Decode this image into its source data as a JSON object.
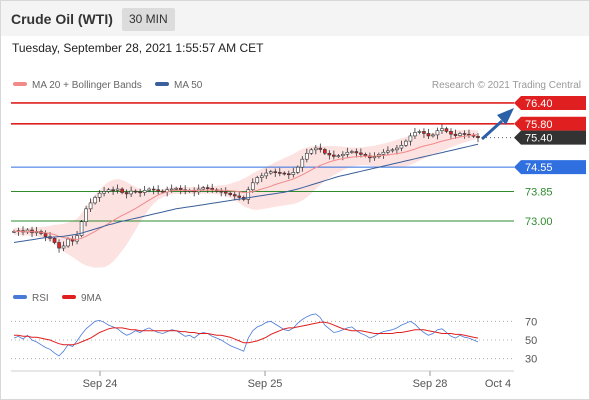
{
  "header": {
    "title": "Crude Oil (WTI)",
    "interval": "30 MIN"
  },
  "timestamp": "Tuesday, September 28, 2021 1:55:57 AM CET",
  "source": "Research © 2021 Trading Central",
  "colors": {
    "resistance": "#e02020",
    "current": "#333333",
    "pivot": "#2f6fe0",
    "support": "#2e8b2e",
    "ma20": "#f28a8a",
    "ma50": "#3a5f9a",
    "bollinger": "#fde2e2",
    "rsi": "#4a7ad8",
    "rsi_ma": "#e02020",
    "arrow": "#2b5fa8"
  },
  "chart_data": [
    {
      "type": "candlestick",
      "legend": [
        {
          "label": "MA 20 + Bollinger Bands"
        },
        {
          "label": "MA 50"
        }
      ],
      "levels": [
        {
          "value": 76.4,
          "label": "76.40",
          "kind": "resistance"
        },
        {
          "value": 75.8,
          "label": "75.80",
          "kind": "resistance"
        },
        {
          "value": 75.4,
          "label": "75.40",
          "kind": "current"
        },
        {
          "value": 74.55,
          "label": "74.55",
          "kind": "pivot"
        },
        {
          "value": 73.85,
          "label": "73.85",
          "kind": "support"
        },
        {
          "value": 73.0,
          "label": "73.00",
          "kind": "support"
        }
      ],
      "ylim": [
        71.3,
        76.6
      ],
      "x_labels": [
        "Sep 24",
        "Sep 25",
        "Sep 28",
        "Oct 4"
      ],
      "closes": [
        72.7,
        72.72,
        72.68,
        72.74,
        72.66,
        72.7,
        72.64,
        72.55,
        72.5,
        72.38,
        72.22,
        72.28,
        72.48,
        72.42,
        72.58,
        72.98,
        73.35,
        73.52,
        73.68,
        73.8,
        73.85,
        73.9,
        73.88,
        73.92,
        73.82,
        73.78,
        73.86,
        73.84,
        73.82,
        73.88,
        73.92,
        73.9,
        73.86,
        73.84,
        73.9,
        73.92,
        73.94,
        73.9,
        73.86,
        73.88,
        73.84,
        73.92,
        73.96,
        73.94,
        73.9,
        73.86,
        73.84,
        73.8,
        73.76,
        73.72,
        73.68,
        73.62,
        73.9,
        74.1,
        74.25,
        74.3,
        74.38,
        74.42,
        74.4,
        74.38,
        74.36,
        74.34,
        74.4,
        74.55,
        74.78,
        74.95,
        75.05,
        75.1,
        75.06,
        74.95,
        74.9,
        74.86,
        74.88,
        74.92,
        74.98,
        75.0,
        74.96,
        74.92,
        74.88,
        74.82,
        74.85,
        74.92,
        74.98,
        75.02,
        75.05,
        75.1,
        75.18,
        75.3,
        75.45,
        75.55,
        75.58,
        75.52,
        75.45,
        75.48,
        75.6,
        75.66,
        75.58,
        75.5,
        75.46,
        75.52,
        75.5,
        75.48,
        75.44,
        75.4
      ],
      "ma20": [
        72.7,
        72.7,
        72.69,
        72.69,
        72.69,
        72.69,
        72.68,
        72.66,
        72.64,
        72.61,
        72.56,
        72.52,
        72.5,
        72.48,
        72.47,
        72.5,
        72.56,
        72.63,
        72.7,
        72.78,
        72.85,
        72.93,
        73.01,
        73.09,
        73.16,
        73.22,
        73.29,
        73.36,
        73.44,
        73.52,
        73.6,
        73.68,
        73.75,
        73.8,
        73.84,
        73.87,
        73.88,
        73.88,
        73.88,
        73.88,
        73.88,
        73.88,
        73.89,
        73.89,
        73.89,
        73.89,
        73.89,
        73.88,
        73.87,
        73.86,
        73.84,
        73.82,
        73.83,
        73.85,
        73.88,
        73.92,
        73.96,
        74.0,
        74.05,
        74.09,
        74.13,
        74.17,
        74.21,
        74.27,
        74.33,
        74.4,
        74.47,
        74.54,
        74.6,
        74.65,
        74.7,
        74.74,
        74.77,
        74.8,
        74.82,
        74.84,
        74.85,
        74.86,
        74.87,
        74.87,
        74.87,
        74.88,
        74.89,
        74.9,
        74.92,
        74.94,
        74.96,
        74.99,
        75.03,
        75.07,
        75.12,
        75.16,
        75.19,
        75.22,
        75.26,
        75.3,
        75.33,
        75.36,
        75.39,
        75.42,
        75.44,
        75.46,
        75.48,
        75.49
      ],
      "ma50": [
        72.38,
        72.4,
        72.42,
        72.44,
        72.46,
        72.48,
        72.5,
        72.52,
        72.53,
        72.54,
        72.55,
        72.56,
        72.58,
        72.6,
        72.62,
        72.65,
        72.69,
        72.73,
        72.77,
        72.81,
        72.85,
        72.89,
        72.92,
        72.96,
        72.99,
        73.02,
        73.05,
        73.08,
        73.11,
        73.14,
        73.17,
        73.2,
        73.23,
        73.26,
        73.29,
        73.32,
        73.35,
        73.37,
        73.39,
        73.41,
        73.43,
        73.45,
        73.47,
        73.49,
        73.51,
        73.53,
        73.55,
        73.57,
        73.59,
        73.61,
        73.63,
        73.65,
        73.67,
        73.69,
        73.71,
        73.73,
        73.75,
        73.77,
        73.79,
        73.81,
        73.83,
        73.86,
        73.89,
        73.92,
        73.96,
        74.0,
        74.04,
        74.08,
        74.12,
        74.16,
        74.2,
        74.24,
        74.28,
        74.31,
        74.34,
        74.37,
        74.4,
        74.43,
        74.46,
        74.49,
        74.52,
        74.55,
        74.58,
        74.61,
        74.64,
        74.67,
        74.7,
        74.73,
        74.76,
        74.79,
        74.82,
        74.85,
        74.88,
        74.91,
        74.94,
        74.97,
        75.0,
        75.03,
        75.06,
        75.09,
        75.12,
        75.15,
        75.18,
        75.21
      ],
      "band_width": [
        0.1,
        0.1,
        0.11,
        0.11,
        0.12,
        0.13,
        0.15,
        0.18,
        0.22,
        0.28,
        0.34,
        0.4,
        0.46,
        0.52,
        0.6,
        0.72,
        0.84,
        0.95,
        1.05,
        1.12,
        1.18,
        1.2,
        1.18,
        1.12,
        1.02,
        0.9,
        0.76,
        0.62,
        0.48,
        0.36,
        0.26,
        0.18,
        0.14,
        0.12,
        0.11,
        0.1,
        0.1,
        0.1,
        0.1,
        0.1,
        0.1,
        0.1,
        0.1,
        0.1,
        0.11,
        0.12,
        0.14,
        0.16,
        0.2,
        0.26,
        0.32,
        0.4,
        0.46,
        0.52,
        0.56,
        0.58,
        0.6,
        0.62,
        0.64,
        0.66,
        0.68,
        0.7,
        0.72,
        0.74,
        0.74,
        0.72,
        0.68,
        0.62,
        0.56,
        0.5,
        0.46,
        0.42,
        0.38,
        0.34,
        0.3,
        0.28,
        0.26,
        0.26,
        0.26,
        0.28,
        0.3,
        0.32,
        0.34,
        0.36,
        0.38,
        0.4,
        0.42,
        0.42,
        0.42,
        0.4,
        0.38,
        0.36,
        0.34,
        0.32,
        0.3,
        0.28,
        0.26,
        0.24,
        0.22,
        0.2,
        0.18,
        0.16,
        0.14,
        0.12
      ]
    },
    {
      "type": "line",
      "legend": [
        {
          "label": "RSI"
        },
        {
          "label": "9MA"
        }
      ],
      "ylim": [
        20,
        80
      ],
      "y_ticks": [
        70,
        50,
        30
      ],
      "x_labels": [
        "Sep 24",
        "Sep 25",
        "Sep 28",
        "Oct 4"
      ],
      "rsi": [
        52,
        54,
        51,
        55,
        50,
        48,
        45,
        42,
        40,
        36,
        33,
        38,
        45,
        43,
        49,
        56,
        62,
        66,
        70,
        71,
        69,
        66,
        64,
        62,
        58,
        55,
        57,
        60,
        58,
        61,
        63,
        60,
        58,
        57,
        59,
        61,
        60,
        57,
        54,
        55,
        52,
        56,
        58,
        57,
        54,
        52,
        50,
        47,
        44,
        42,
        40,
        38,
        52,
        60,
        64,
        66,
        69,
        70,
        67,
        64,
        61,
        60,
        63,
        68,
        72,
        75,
        77,
        78,
        74,
        66,
        62,
        58,
        59,
        61,
        63,
        64,
        60,
        57,
        55,
        52,
        54,
        57,
        59,
        60,
        61,
        63,
        66,
        68,
        70,
        67,
        62,
        58,
        55,
        57,
        61,
        62,
        58,
        54,
        52,
        55,
        53,
        52,
        50,
        48
      ],
      "rsi_ma": [
        55,
        55,
        54,
        54,
        53,
        53,
        52,
        51,
        50,
        48,
        46,
        45,
        45,
        45,
        46,
        48,
        50,
        52,
        55,
        58,
        60,
        62,
        63,
        63,
        63,
        62,
        61,
        61,
        60,
        60,
        60,
        60,
        60,
        60,
        60,
        60,
        60,
        59,
        59,
        58,
        58,
        57,
        57,
        57,
        56,
        55,
        55,
        54,
        53,
        51,
        49,
        47,
        47,
        48,
        49,
        51,
        53,
        56,
        58,
        60,
        62,
        63,
        63,
        64,
        65,
        66,
        67,
        68,
        69,
        69,
        68,
        66,
        64,
        62,
        61,
        60,
        60,
        60,
        59,
        58,
        57,
        57,
        57,
        57,
        57,
        58,
        58,
        59,
        60,
        61,
        61,
        61,
        60,
        59,
        58,
        57,
        57,
        57,
        56,
        56,
        55,
        54,
        53,
        52
      ]
    }
  ]
}
